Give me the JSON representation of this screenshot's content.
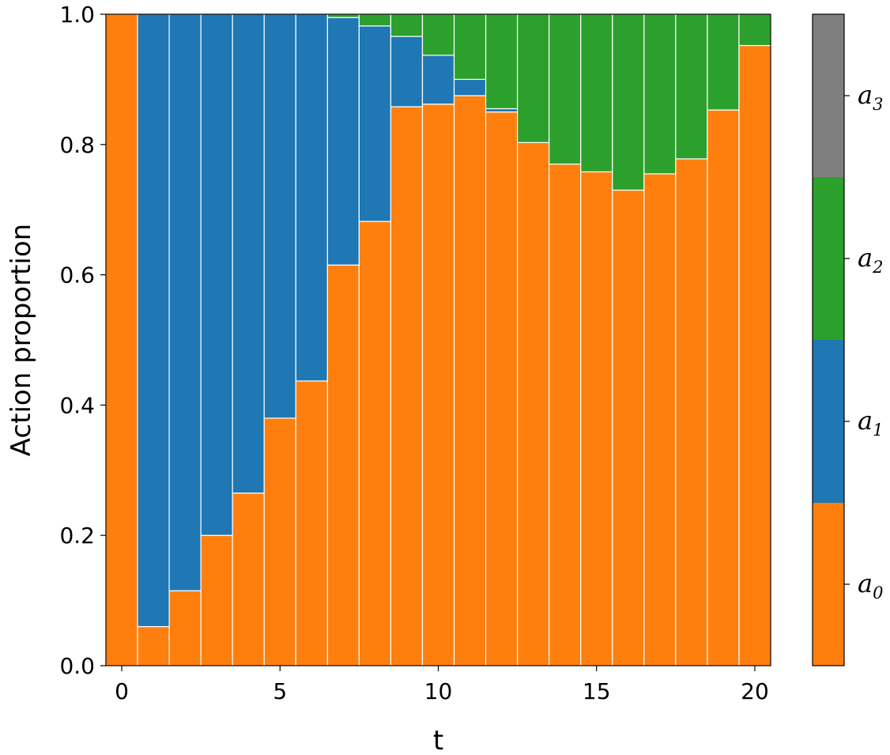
{
  "chart_data": {
    "type": "bar",
    "stacked": true,
    "x": [
      0,
      1,
      2,
      3,
      4,
      5,
      6,
      7,
      8,
      9,
      10,
      11,
      12,
      13,
      14,
      15,
      16,
      17,
      18,
      19,
      20
    ],
    "series": [
      {
        "name": "a0",
        "color": "#ff7f0e",
        "values": [
          1.0,
          0.06,
          0.115,
          0.2,
          0.265,
          0.38,
          0.437,
          0.615,
          0.682,
          0.858,
          0.862,
          0.875,
          0.85,
          0.803,
          0.77,
          0.758,
          0.73,
          0.755,
          0.778,
          0.853,
          0.952
        ]
      },
      {
        "name": "a1",
        "color": "#1f77b4",
        "values": [
          0.0,
          0.94,
          0.885,
          0.8,
          0.735,
          0.62,
          0.563,
          0.38,
          0.3,
          0.108,
          0.075,
          0.025,
          0.005,
          0,
          0,
          0,
          0,
          0,
          0,
          0,
          0
        ]
      },
      {
        "name": "a2",
        "color": "#2ca02c",
        "values": [
          0.0,
          0.0,
          0.0,
          0.0,
          0.0,
          0.0,
          0.0,
          0.005,
          0.018,
          0.034,
          0.063,
          0.1,
          0.145,
          0.197,
          0.23,
          0.242,
          0.27,
          0.245,
          0.222,
          0.147,
          0.048
        ]
      },
      {
        "name": "a3",
        "color": "#7f7f7f",
        "values": [
          0,
          0,
          0,
          0,
          0,
          0,
          0,
          0,
          0,
          0,
          0,
          0,
          0,
          0,
          0,
          0,
          0,
          0,
          0,
          0,
          0
        ]
      }
    ],
    "xlabel": "t",
    "ylabel": "Action proportion",
    "xlim": [
      -0.5,
      20.5
    ],
    "ylim": [
      0.0,
      1.0
    ],
    "xticks": [
      "0",
      "5",
      "10",
      "15",
      "20"
    ],
    "yticks": [
      "0.0",
      "0.2",
      "0.4",
      "0.6",
      "0.8",
      "1.0"
    ],
    "colorbar": {
      "labels": [
        "a",
        "a",
        "a",
        "a"
      ],
      "subscripts": [
        "0",
        "1",
        "2",
        "3"
      ],
      "colors": [
        "#ff7f0e",
        "#1f77b4",
        "#2ca02c",
        "#7f7f7f"
      ]
    }
  }
}
